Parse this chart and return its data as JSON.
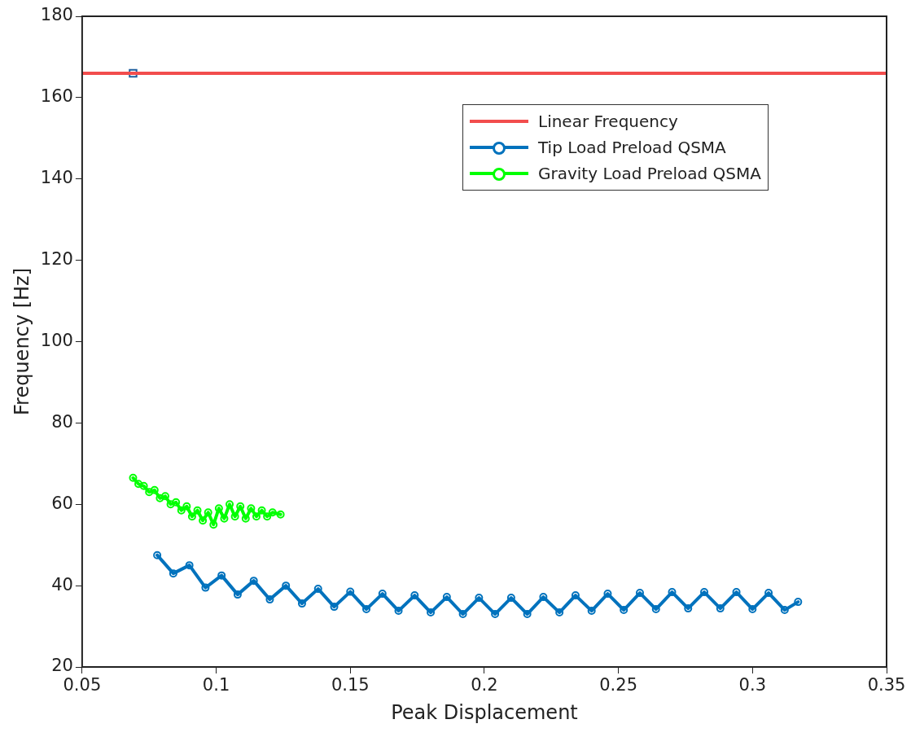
{
  "chart_data": {
    "type": "line",
    "xlabel": "Peak Displacement",
    "ylabel": "Frequency [Hz]",
    "xlim": [
      0.05,
      0.35
    ],
    "xticks": [
      0.05,
      0.1,
      0.15,
      0.2,
      0.25,
      0.3,
      0.35
    ],
    "ylim": [
      20,
      180
    ],
    "yticks": [
      20,
      40,
      60,
      80,
      100,
      120,
      140,
      160,
      180
    ],
    "grid": false,
    "legend": "top right",
    "line_style": "solid",
    "series": [
      {
        "name": "Linear Frequency",
        "color": "#f24d4d",
        "marker": "none",
        "x": [
          0.05,
          0.35
        ],
        "values": [
          166,
          166
        ]
      },
      {
        "name": "Tip Load Preload QSMA",
        "color": "#0072bd",
        "marker": "circle",
        "x": [
          0.078,
          0.084,
          0.09,
          0.096,
          0.102,
          0.108,
          0.114,
          0.12,
          0.126,
          0.132,
          0.138,
          0.144,
          0.15,
          0.156,
          0.162,
          0.168,
          0.174,
          0.18,
          0.186,
          0.192,
          0.198,
          0.204,
          0.21,
          0.216,
          0.222,
          0.228,
          0.234,
          0.24,
          0.246,
          0.252,
          0.258,
          0.264,
          0.27,
          0.276,
          0.282,
          0.288,
          0.294,
          0.3,
          0.306,
          0.312,
          0.317
        ],
        "values": [
          47.5,
          43,
          45,
          39.5,
          42.5,
          37.8,
          41.2,
          36.6,
          40,
          35.6,
          39.2,
          34.8,
          38.5,
          34.2,
          38,
          33.8,
          37.6,
          33.4,
          37.2,
          33,
          37,
          33,
          37,
          33,
          37.2,
          33.4,
          37.6,
          33.8,
          38,
          34,
          38.2,
          34.2,
          38.4,
          34.4,
          38.4,
          34.4,
          38.4,
          34.2,
          38.2,
          34,
          36
        ]
      },
      {
        "name": "Gravity Load Preload QSMA",
        "color": "#00ff00",
        "marker": "circle",
        "x": [
          0.069,
          0.071,
          0.073,
          0.075,
          0.077,
          0.079,
          0.081,
          0.083,
          0.085,
          0.087,
          0.089,
          0.091,
          0.093,
          0.095,
          0.097,
          0.099,
          0.101,
          0.103,
          0.105,
          0.107,
          0.109,
          0.111,
          0.113,
          0.115,
          0.117,
          0.119,
          0.121,
          0.124
        ],
        "values": [
          66.5,
          65,
          64.5,
          63,
          63.5,
          61.5,
          62,
          60,
          60.5,
          58.5,
          59.5,
          57,
          58.5,
          56,
          58,
          55,
          59,
          56.5,
          60,
          57,
          59.5,
          56.5,
          59,
          57,
          58.5,
          57,
          58,
          57.5
        ]
      },
      {
        "type": "scatter",
        "color": "#1f5f9f",
        "marker": "square",
        "x": [
          0.069
        ],
        "values": [
          166
        ]
      }
    ]
  }
}
